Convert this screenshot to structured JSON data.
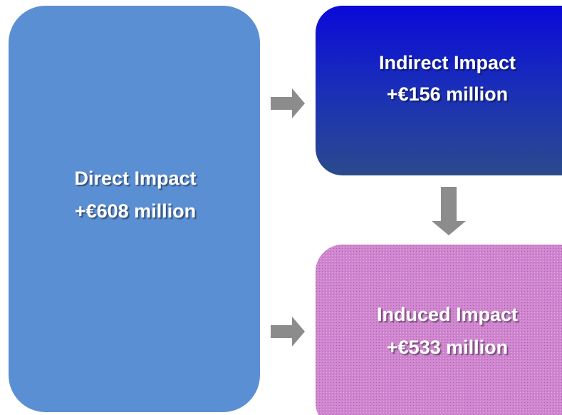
{
  "nodes": [
    {
      "title": "Direct Impact",
      "value": "+€608 million"
    },
    {
      "title": "Indirect Impact",
      "value": "+€156 million"
    },
    {
      "title": "Induced Impact",
      "value": "+€533 million"
    }
  ]
}
